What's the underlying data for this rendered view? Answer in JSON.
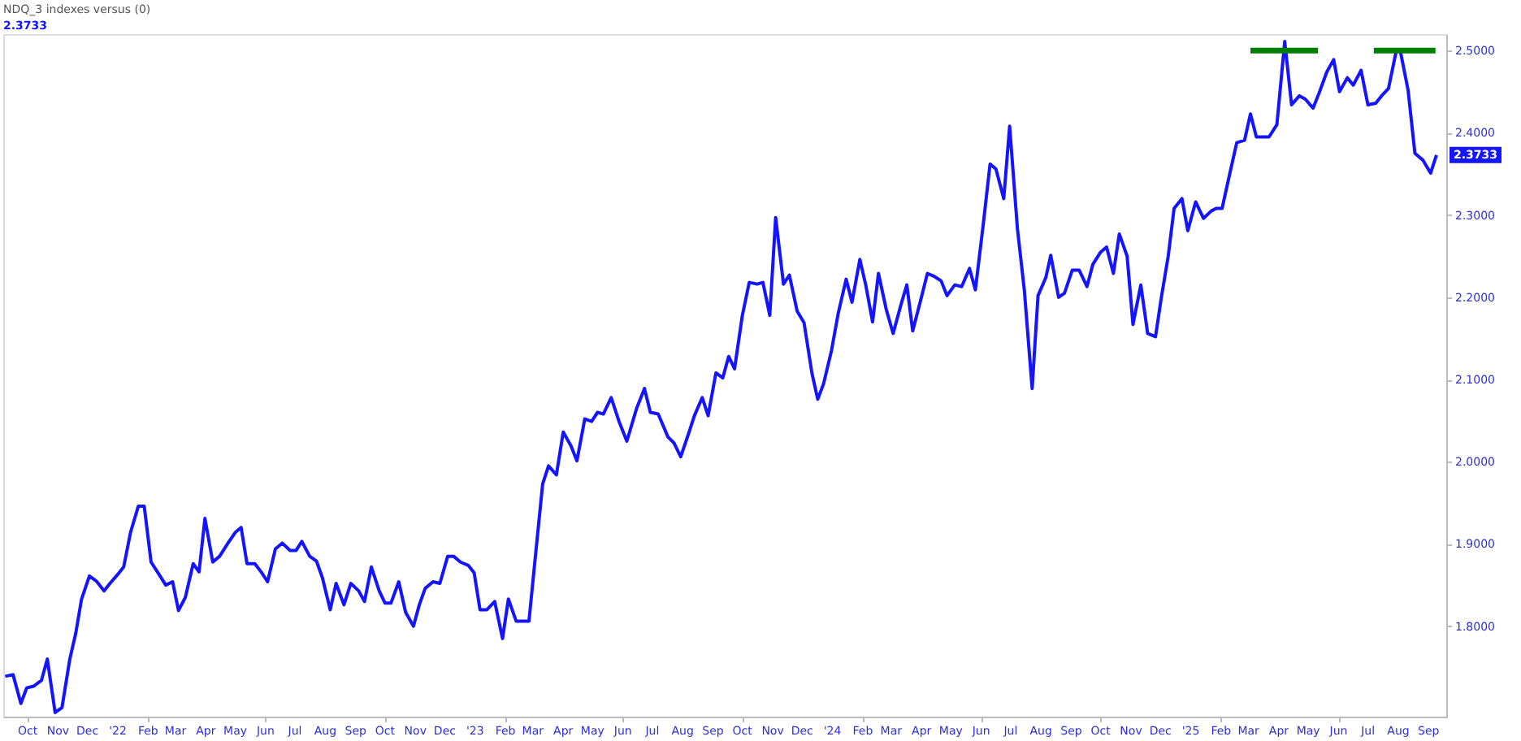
{
  "chart_data": {
    "type": "line",
    "title": "NDQ_3 indexes versus (0)",
    "subtitle": "2.3733",
    "x": [
      "2021-09-08",
      "2021-09-16",
      "2021-09-24",
      "2021-09-30",
      "2021-10-07",
      "2021-10-15",
      "2021-10-21",
      "2021-10-29",
      "2021-11-05",
      "2021-11-13",
      "2021-11-19",
      "2021-11-25",
      "2021-12-03",
      "2021-12-10",
      "2021-12-18",
      "2021-12-24",
      "2022-01-01",
      "2022-01-07",
      "2022-01-14",
      "2022-01-22",
      "2022-01-28",
      "2022-02-04",
      "2022-02-11",
      "2022-02-19",
      "2022-02-26",
      "2022-03-04",
      "2022-03-11",
      "2022-03-19",
      "2022-03-25",
      "2022-03-31",
      "2022-04-08",
      "2022-04-15",
      "2022-04-23",
      "2022-05-01",
      "2022-05-07",
      "2022-05-13",
      "2022-05-21",
      "2022-05-28",
      "2022-06-03",
      "2022-06-11",
      "2022-06-18",
      "2022-06-26",
      "2022-07-02",
      "2022-07-08",
      "2022-07-16",
      "2022-07-23",
      "2022-07-29",
      "2022-08-06",
      "2022-08-12",
      "2022-08-20",
      "2022-08-27",
      "2022-09-04",
      "2022-09-10",
      "2022-09-17",
      "2022-09-25",
      "2022-10-01",
      "2022-10-07",
      "2022-10-15",
      "2022-10-22",
      "2022-10-30",
      "2022-11-05",
      "2022-11-11",
      "2022-11-19",
      "2022-11-26",
      "2022-12-04",
      "2022-12-10",
      "2022-12-17",
      "2022-12-25",
      "2022-12-31",
      "2023-01-06",
      "2023-01-13",
      "2023-01-21",
      "2023-01-29",
      "2023-02-04",
      "2023-02-12",
      "2023-02-25",
      "2023-03-03",
      "2023-03-11",
      "2023-03-17",
      "2023-03-25",
      "2023-04-01",
      "2023-04-09",
      "2023-04-15",
      "2023-04-23",
      "2023-04-30",
      "2023-05-06",
      "2023-05-12",
      "2023-05-20",
      "2023-05-28",
      "2023-06-05",
      "2023-06-15",
      "2023-06-23",
      "2023-06-29",
      "2023-07-07",
      "2023-07-17",
      "2023-07-23",
      "2023-07-30",
      "2023-08-07",
      "2023-08-13",
      "2023-08-21",
      "2023-08-27",
      "2023-09-04",
      "2023-09-11",
      "2023-09-17",
      "2023-09-23",
      "2023-10-01",
      "2023-10-08",
      "2023-10-16",
      "2023-10-22",
      "2023-10-29",
      "2023-11-04",
      "2023-11-12",
      "2023-11-18",
      "2023-11-26",
      "2023-12-03",
      "2023-12-11",
      "2023-12-17",
      "2023-12-23",
      "2023-12-31",
      "2024-01-07",
      "2024-01-15",
      "2024-01-21",
      "2024-01-29",
      "2024-02-04",
      "2024-02-11",
      "2024-02-17",
      "2024-02-25",
      "2024-03-03",
      "2024-03-11",
      "2024-03-17",
      "2024-03-23",
      "2024-03-31",
      "2024-04-07",
      "2024-04-13",
      "2024-04-21",
      "2024-04-27",
      "2024-05-05",
      "2024-05-12",
      "2024-05-20",
      "2024-05-26",
      "2024-06-03",
      "2024-06-10",
      "2024-06-16",
      "2024-06-24",
      "2024-06-30",
      "2024-07-08",
      "2024-07-15",
      "2024-07-23",
      "2024-07-29",
      "2024-08-06",
      "2024-08-11",
      "2024-08-19",
      "2024-08-25",
      "2024-09-02",
      "2024-09-09",
      "2024-09-17",
      "2024-09-23",
      "2024-10-01",
      "2024-10-07",
      "2024-10-14",
      "2024-10-20",
      "2024-10-28",
      "2024-11-03",
      "2024-11-11",
      "2024-11-18",
      "2024-11-26",
      "2024-12-02",
      "2024-12-09",
      "2024-12-15",
      "2024-12-23",
      "2024-12-29",
      "2025-01-06",
      "2025-01-14",
      "2025-01-22",
      "2025-01-27",
      "2025-02-02",
      "2025-02-10",
      "2025-02-17",
      "2025-02-25",
      "2025-03-03",
      "2025-03-09",
      "2025-03-22",
      "2025-03-30",
      "2025-04-07",
      "2025-04-14",
      "2025-04-22",
      "2025-04-28",
      "2025-05-06",
      "2025-05-12",
      "2025-05-20",
      "2025-05-27",
      "2025-06-02",
      "2025-06-10",
      "2025-06-16",
      "2025-06-24",
      "2025-07-01",
      "2025-07-09",
      "2025-07-15",
      "2025-07-22",
      "2025-07-30",
      "2025-08-03",
      "2025-08-11",
      "2025-08-18",
      "2025-08-26",
      "2025-09-03",
      "2025-09-09"
    ],
    "series": [
      {
        "color": "#1414ff",
        "values": [
          1.739,
          1.741,
          1.706,
          1.725,
          1.727,
          1.734,
          1.76,
          1.695,
          1.701,
          1.76,
          1.791,
          1.833,
          1.861,
          1.855,
          1.843,
          1.852,
          1.863,
          1.872,
          1.914,
          1.946,
          1.946,
          1.878,
          1.865,
          1.85,
          1.854,
          1.819,
          1.835,
          1.876,
          1.866,
          1.931,
          1.878,
          1.885,
          1.9,
          1.914,
          1.92,
          1.876,
          1.876,
          1.865,
          1.854,
          1.894,
          1.901,
          1.892,
          1.892,
          1.903,
          1.885,
          1.879,
          1.859,
          1.82,
          1.852,
          1.826,
          1.852,
          1.843,
          1.83,
          1.872,
          1.843,
          1.828,
          1.828,
          1.854,
          1.817,
          1.8,
          1.826,
          1.846,
          1.854,
          1.852,
          1.885,
          1.885,
          1.878,
          1.874,
          1.865,
          1.82,
          1.82,
          1.83,
          1.785,
          1.833,
          1.806,
          1.806,
          1.878,
          1.973,
          1.995,
          1.984,
          2.036,
          2.019,
          2.001,
          2.052,
          2.049,
          2.06,
          2.058,
          2.078,
          2.049,
          2.025,
          2.065,
          2.089,
          2.06,
          2.058,
          2.03,
          2.023,
          2.006,
          2.034,
          2.056,
          2.078,
          2.056,
          2.108,
          2.102,
          2.128,
          2.113,
          2.178,
          2.218,
          2.216,
          2.218,
          2.178,
          2.297,
          2.216,
          2.227,
          2.183,
          2.169,
          2.108,
          2.076,
          2.095,
          2.135,
          2.181,
          2.222,
          2.194,
          2.246,
          2.215,
          2.17,
          2.229,
          2.185,
          2.156,
          2.191,
          2.215,
          2.159,
          2.196,
          2.229,
          2.226,
          2.22,
          2.202,
          2.215,
          2.213,
          2.235,
          2.209,
          2.288,
          2.362,
          2.356,
          2.32,
          2.408,
          2.283,
          2.209,
          2.089,
          2.202,
          2.224,
          2.251,
          2.2,
          2.205,
          2.233,
          2.233,
          2.213,
          2.24,
          2.255,
          2.261,
          2.229,
          2.277,
          2.25,
          2.167,
          2.215,
          2.156,
          2.152,
          2.2,
          2.25,
          2.308,
          2.32,
          2.281,
          2.316,
          2.296,
          2.305,
          2.308,
          2.308,
          2.351,
          2.388,
          2.391,
          2.423,
          2.395,
          2.395,
          2.41,
          2.511,
          2.434,
          2.445,
          2.441,
          2.43,
          2.448,
          2.474,
          2.489,
          2.45,
          2.467,
          2.458,
          2.476,
          2.434,
          2.436,
          2.445,
          2.454,
          2.5,
          2.5,
          2.452,
          2.375,
          2.367,
          2.351,
          2.373
        ]
      },
      {
        "type": "line",
        "color": "#008000",
        "x": [
          "2025-03-03",
          "2025-05-11"
        ],
        "values": [
          2.5,
          2.5
        ]
      },
      {
        "type": "line",
        "color": "#008000",
        "x": [
          "2025-07-07",
          "2025-09-08"
        ],
        "values": [
          2.5,
          2.5
        ]
      }
    ],
    "annotations": [
      "2.3733"
    ],
    "xlim": [
      "2021-09-06",
      "2025-09-19"
    ],
    "xticks": [
      {
        "value": "2021-10-01",
        "label": "Oct"
      },
      {
        "value": "2021-11-01",
        "label": "Nov"
      },
      {
        "value": "2021-12-01",
        "label": "Dec"
      },
      {
        "value": "2022-01-01",
        "label": "'22"
      },
      {
        "value": "2022-02-01",
        "label": "Feb"
      },
      {
        "value": "2022-03-01",
        "label": "Mar"
      },
      {
        "value": "2022-04-01",
        "label": "Apr"
      },
      {
        "value": "2022-05-01",
        "label": "May"
      },
      {
        "value": "2022-06-01",
        "label": "Jun"
      },
      {
        "value": "2022-07-01",
        "label": "Jul"
      },
      {
        "value": "2022-08-01",
        "label": "Aug"
      },
      {
        "value": "2022-09-01",
        "label": "Sep"
      },
      {
        "value": "2022-10-01",
        "label": "Oct"
      },
      {
        "value": "2022-11-01",
        "label": "Nov"
      },
      {
        "value": "2022-12-01",
        "label": "Dec"
      },
      {
        "value": "2023-01-01",
        "label": "'23"
      },
      {
        "value": "2023-02-01",
        "label": "Feb"
      },
      {
        "value": "2023-03-01",
        "label": "Mar"
      },
      {
        "value": "2023-04-01",
        "label": "Apr"
      },
      {
        "value": "2023-05-01",
        "label": "May"
      },
      {
        "value": "2023-06-01",
        "label": "Jun"
      },
      {
        "value": "2023-07-01",
        "label": "Jul"
      },
      {
        "value": "2023-08-01",
        "label": "Aug"
      },
      {
        "value": "2023-09-01",
        "label": "Sep"
      },
      {
        "value": "2023-10-01",
        "label": "Oct"
      },
      {
        "value": "2023-11-01",
        "label": "Nov"
      },
      {
        "value": "2023-12-01",
        "label": "Dec"
      },
      {
        "value": "2024-01-01",
        "label": "'24"
      },
      {
        "value": "2024-02-01",
        "label": "Feb"
      },
      {
        "value": "2024-03-01",
        "label": "Mar"
      },
      {
        "value": "2024-04-01",
        "label": "Apr"
      },
      {
        "value": "2024-05-01",
        "label": "May"
      },
      {
        "value": "2024-06-01",
        "label": "Jun"
      },
      {
        "value": "2024-07-01",
        "label": "Jul"
      },
      {
        "value": "2024-08-01",
        "label": "Aug"
      },
      {
        "value": "2024-09-01",
        "label": "Sep"
      },
      {
        "value": "2024-10-01",
        "label": "Oct"
      },
      {
        "value": "2024-11-01",
        "label": "Nov"
      },
      {
        "value": "2024-12-01",
        "label": "Dec"
      },
      {
        "value": "2025-01-01",
        "label": "'25"
      },
      {
        "value": "2025-02-01",
        "label": "Feb"
      },
      {
        "value": "2025-03-01",
        "label": "Mar"
      },
      {
        "value": "2025-04-01",
        "label": "Apr"
      },
      {
        "value": "2025-05-01",
        "label": "May"
      },
      {
        "value": "2025-06-01",
        "label": "Jun"
      },
      {
        "value": "2025-07-01",
        "label": "Jul"
      },
      {
        "value": "2025-08-01",
        "label": "Aug"
      },
      {
        "value": "2025-09-01",
        "label": "Sep"
      }
    ],
    "ylim": [
      1.69,
      2.52
    ],
    "yticks": [
      {
        "value": 1.8,
        "label": "1.8000"
      },
      {
        "value": 1.9,
        "label": "1.9000"
      },
      {
        "value": 2.0,
        "label": "2.0000"
      },
      {
        "value": 2.1,
        "label": "2.1000"
      },
      {
        "value": 2.2,
        "label": "2.2000"
      },
      {
        "value": 2.3,
        "label": "2.3000"
      },
      {
        "value": 2.4,
        "label": "2.4000"
      },
      {
        "value": 2.5,
        "label": "2.5000"
      }
    ],
    "grid": false,
    "marker": "none",
    "line_style": "solid"
  }
}
